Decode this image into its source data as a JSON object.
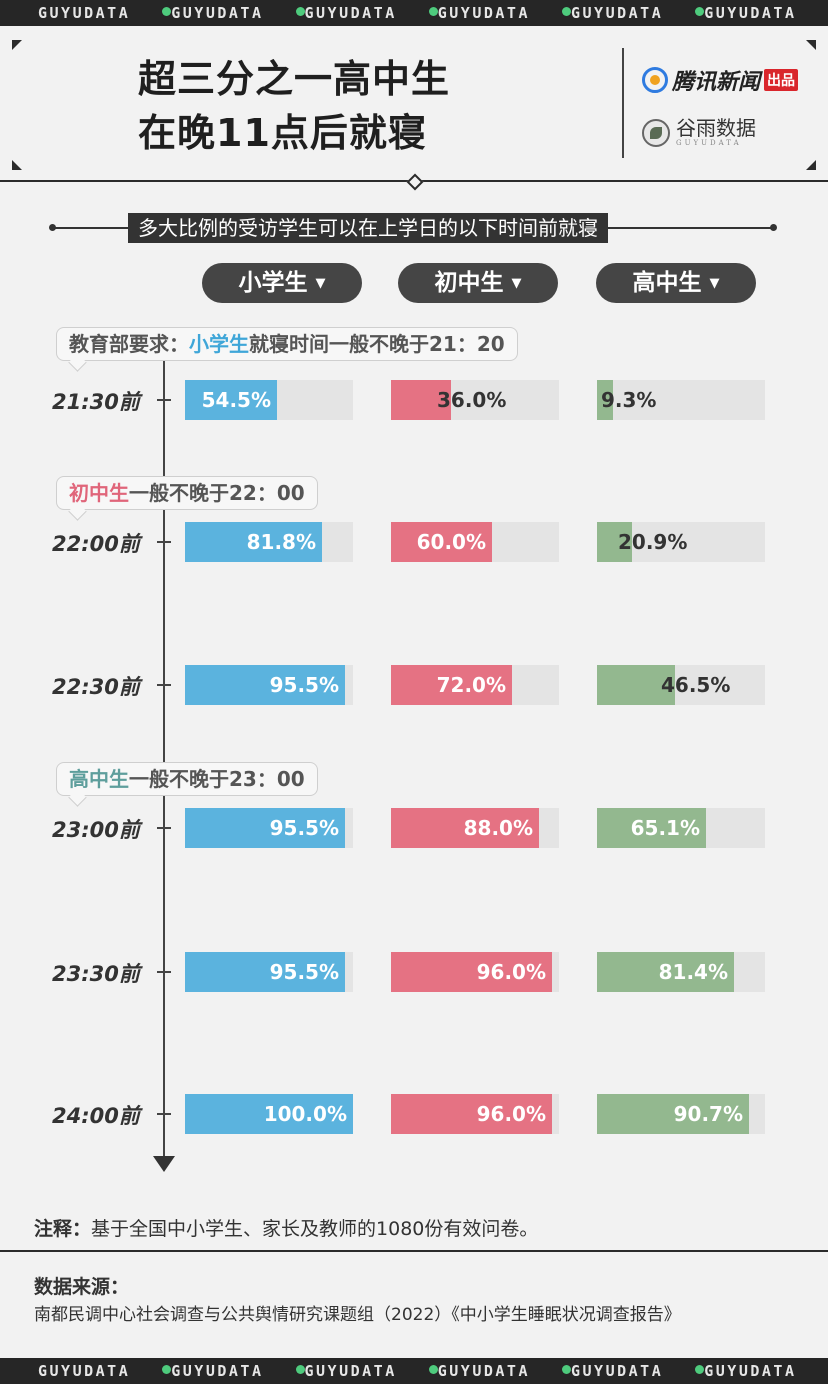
{
  "brand_strip": [
    "GUYUDATA",
    "GUYUDATA",
    "GUYUDATA",
    "GUYUDATA",
    "GUYUDATA",
    "GUYUDATA"
  ],
  "header": {
    "title_line1": "超三分之一高中生",
    "title_line2": "在晚11点后就寝",
    "brand1": "腾讯新闻",
    "brand1_badge": "出品",
    "brand2_cn": "谷雨数据",
    "brand2_en": "GUYUDATA"
  },
  "chart_data": {
    "type": "bar",
    "title": "多大比例的受访学生可以在上学日的以下时间前就寝",
    "categories": [
      "21:30前",
      "22:00前",
      "22:30前",
      "23:00前",
      "23:30前",
      "24:00前"
    ],
    "series": [
      {
        "name": "小学生",
        "color": "#5bb3de",
        "values": [
          54.5,
          81.8,
          95.5,
          95.5,
          95.5,
          100.0
        ]
      },
      {
        "name": "初中生",
        "color": "#e57283",
        "values": [
          36.0,
          60.0,
          72.0,
          88.0,
          96.0,
          96.0
        ]
      },
      {
        "name": "高中生",
        "color": "#93b88f",
        "values": [
          9.3,
          20.9,
          46.5,
          65.1,
          81.4,
          90.7
        ]
      }
    ],
    "value_format": "%",
    "ylim": [
      0,
      100
    ],
    "annotations": [
      {
        "prefix": "教育部要求：",
        "highlight": "小学生",
        "highlight_color": "#3fa6d8",
        "text": "就寝时间一般不晚于21：20",
        "before_row": 0
      },
      {
        "prefix": "",
        "highlight": "初中生",
        "highlight_color": "#e0657a",
        "text": "一般不晚于22：00",
        "before_row": 1
      },
      {
        "prefix": "",
        "highlight": "高中生",
        "highlight_color": "#5e9e9c",
        "text": "一般不晚于23：00",
        "before_row": 3
      }
    ]
  },
  "footer": {
    "note_label": "注释：",
    "note_text": "基于全国中小学生、家长及教师的1080份有效问卷。",
    "source_label": "数据来源：",
    "source_text": "南都民调中心社会调查与公共舆情研究课题组（2022）《中小学生睡眠状况调查报告》"
  }
}
